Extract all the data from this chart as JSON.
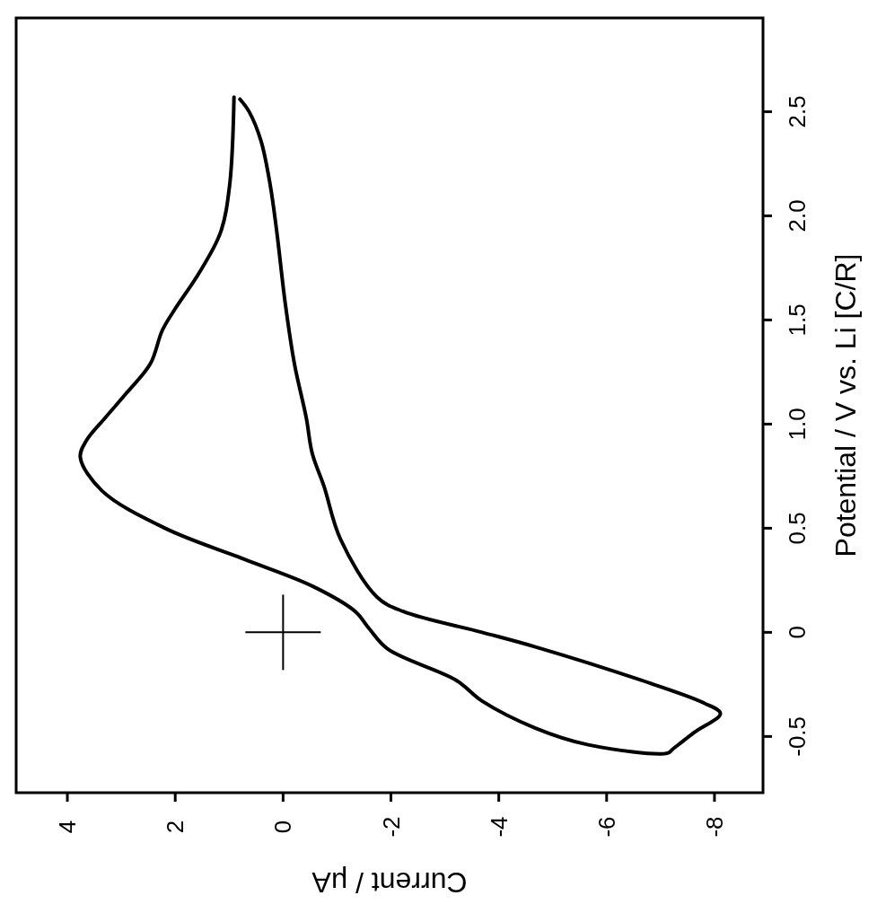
{
  "chart_data": {
    "type": "line",
    "xlabel": "Current / μA",
    "ylabel": "Potential / V vs. Li [C/R]",
    "xlim": [
      4.95,
      -8.9
    ],
    "ylim": [
      -0.77,
      2.95
    ],
    "xticks": [
      4,
      2,
      0,
      -2,
      -4,
      -6,
      -8
    ],
    "yticks": [
      -0.5,
      0,
      {
        "value": 0.5,
        "label": "0.5"
      },
      {
        "value": 1,
        "label": "1.0"
      },
      {
        "value": 1.5,
        "label": "1.5"
      },
      {
        "value": 2,
        "label": "2.0"
      },
      {
        "value": 2.5,
        "label": "2.5"
      }
    ],
    "grid": false,
    "marker": "none",
    "line_style": "solid",
    "series": [
      {
        "color": "#000000",
        "values": [
          2.57,
          2.15,
          1.92,
          1.72,
          1.55,
          1.45,
          1.29,
          1.15,
          1.03,
          0.92,
          0.84,
          0.68,
          0.5,
          0.35,
          0.22,
          0.1,
          0.02,
          -0.08,
          -0.23,
          -0.33,
          -0.46,
          -0.54,
          -0.58,
          -0.56,
          -0.48,
          -0.39,
          -0.34,
          -0.23,
          -0.07,
          0.0,
          0.1,
          0.17,
          0.45,
          0.7,
          0.86,
          1.03,
          1.29,
          1.58,
          1.93,
          2.15,
          2.36,
          2.5,
          2.56
        ],
        "x": [
          0.91,
          0.99,
          1.16,
          1.57,
          2.01,
          2.24,
          2.46,
          2.9,
          3.3,
          3.65,
          3.76,
          3.36,
          2.19,
          0.71,
          -0.56,
          -1.34,
          -1.59,
          -1.94,
          -3.21,
          -3.69,
          -4.68,
          -5.66,
          -7.13,
          -7.23,
          -7.63,
          -8.11,
          -7.81,
          -6.64,
          -4.68,
          -3.69,
          -2.23,
          -1.74,
          -1.06,
          -0.76,
          -0.54,
          -0.43,
          -0.21,
          -0.04,
          0.12,
          0.24,
          0.41,
          0.63,
          0.8
        ]
      }
    ]
  }
}
